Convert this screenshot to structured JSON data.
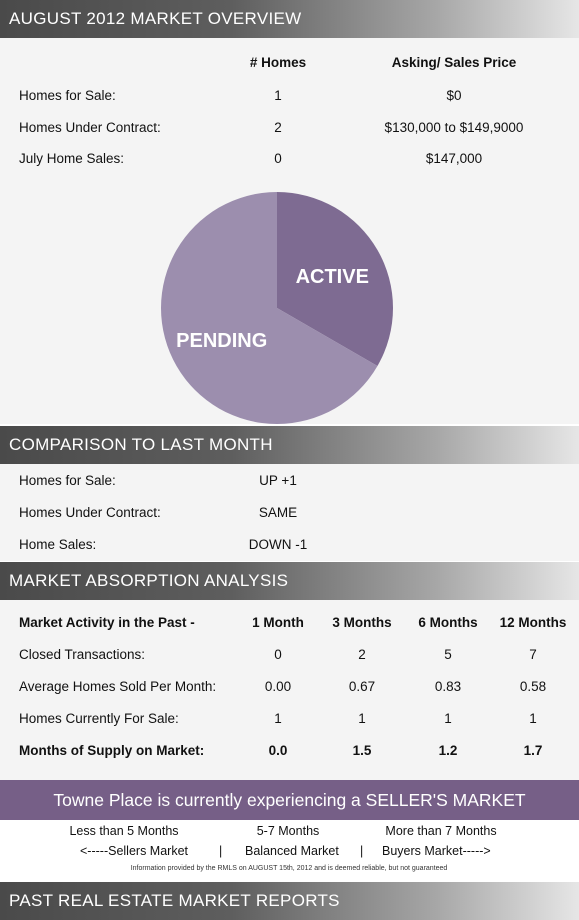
{
  "overview": {
    "title": "AUGUST 2012 MARKET OVERVIEW",
    "col_homes": "# Homes",
    "col_price": "Asking/ Sales Price",
    "rows": [
      {
        "label": "Homes for Sale:",
        "homes": "1",
        "price": "$0"
      },
      {
        "label": "Homes Under Contract:",
        "homes": "2",
        "price": "$130,000 to $149,9000"
      },
      {
        "label": "July Home Sales:",
        "homes": "0",
        "price": "$147,000"
      }
    ]
  },
  "chart_data": {
    "type": "pie",
    "categories": [
      "ACTIVE",
      "PENDING"
    ],
    "values": [
      1,
      2
    ],
    "colors": [
      "#7e6b92",
      "#9c8eae"
    ],
    "title": ""
  },
  "comparison": {
    "title": "COMPARISON TO LAST MONTH",
    "rows": [
      {
        "label": "Homes for Sale:",
        "value": "UP +1"
      },
      {
        "label": "Homes Under Contract:",
        "value": "SAME"
      },
      {
        "label": "Home Sales:",
        "value": "DOWN -1"
      }
    ]
  },
  "absorption": {
    "title": "MARKET ABSORPTION ANALYSIS",
    "header": [
      "Market Activity in the Past -",
      "1 Month",
      "3 Months",
      "6 Months",
      "12 Months"
    ],
    "rows": [
      [
        "Closed Transactions:",
        "0",
        "2",
        "5",
        "7"
      ],
      [
        "Average Homes Sold Per Month:",
        "0.00",
        "0.67",
        "0.83",
        "0.58"
      ],
      [
        "Homes Currently For Sale:",
        "1",
        "1",
        "1",
        "1"
      ],
      [
        "Months of Supply on Market:",
        "0.0",
        "1.5",
        "1.2",
        "1.7"
      ]
    ]
  },
  "market": {
    "banner": "Towne Place is currently experiencing a SELLER'S MARKET",
    "range_sellers": "Less than 5 Months",
    "range_balanced": "5-7 Months",
    "range_buyers": "More than 7 Months",
    "label_sellers": "<-----Sellers Market",
    "sep": "|",
    "label_balanced": "Balanced Market",
    "label_buyers": "Buyers Market----->",
    "disclaimer": "Information provided by the RMLS on AUGUST 15th, 2012 and is deemed reliable, but not guaranteed"
  },
  "past": {
    "title": "PAST REAL ESTATE MARKET REPORTS"
  }
}
